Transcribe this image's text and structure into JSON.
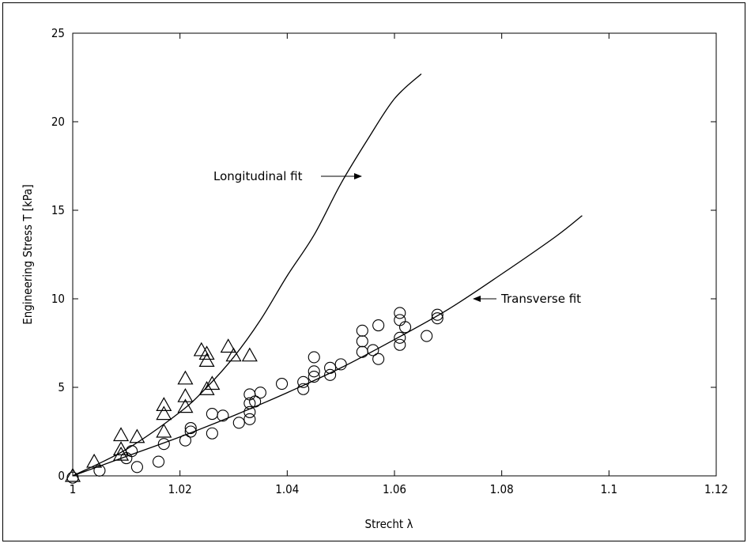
{
  "chart_data": {
    "type": "scatter",
    "title": "",
    "xlabel": "Strecht λ",
    "ylabel": "Engineering Stress T [kPa]",
    "xlim": [
      1,
      1.12
    ],
    "ylim": [
      0,
      25
    ],
    "x_ticks": [
      "1",
      "1.02",
      "1.04",
      "1.06",
      "1.08",
      "1.1",
      "1.12"
    ],
    "y_ticks": [
      "0",
      "5",
      "10",
      "15",
      "20",
      "25"
    ],
    "grid": false,
    "annotations": [
      {
        "text": "Longitudinal fit",
        "points_to": "longitudinal-fit"
      },
      {
        "text": "Transverse fit",
        "points_to": "transverse-fit"
      }
    ],
    "series": [
      {
        "marker": "triangle",
        "points": [
          [
            1.0,
            0.0
          ],
          [
            1.004,
            0.8
          ],
          [
            1.009,
            1.2
          ],
          [
            1.009,
            1.5
          ],
          [
            1.009,
            2.3
          ],
          [
            1.012,
            2.2
          ],
          [
            1.017,
            2.5
          ],
          [
            1.017,
            3.5
          ],
          [
            1.017,
            4.0
          ],
          [
            1.021,
            3.9
          ],
          [
            1.021,
            4.5
          ],
          [
            1.021,
            5.5
          ],
          [
            1.024,
            7.1
          ],
          [
            1.025,
            6.9
          ],
          [
            1.025,
            6.5
          ],
          [
            1.025,
            4.9
          ],
          [
            1.026,
            5.2
          ],
          [
            1.029,
            7.3
          ],
          [
            1.03,
            6.8
          ],
          [
            1.033,
            6.8
          ]
        ]
      },
      {
        "marker": "circle",
        "points": [
          [
            1.0,
            -0.1
          ],
          [
            1.005,
            0.3
          ],
          [
            1.01,
            1.0
          ],
          [
            1.011,
            1.4
          ],
          [
            1.012,
            0.5
          ],
          [
            1.016,
            0.8
          ],
          [
            1.017,
            1.8
          ],
          [
            1.021,
            2.0
          ],
          [
            1.022,
            2.7
          ],
          [
            1.022,
            2.5
          ],
          [
            1.026,
            3.5
          ],
          [
            1.026,
            2.4
          ],
          [
            1.028,
            3.4
          ],
          [
            1.031,
            3.0
          ],
          [
            1.033,
            4.6
          ],
          [
            1.033,
            4.1
          ],
          [
            1.033,
            3.6
          ],
          [
            1.033,
            3.2
          ],
          [
            1.034,
            4.2
          ],
          [
            1.035,
            4.7
          ],
          [
            1.039,
            5.2
          ],
          [
            1.043,
            5.3
          ],
          [
            1.043,
            4.9
          ],
          [
            1.045,
            6.7
          ],
          [
            1.045,
            5.9
          ],
          [
            1.045,
            5.6
          ],
          [
            1.048,
            6.1
          ],
          [
            1.048,
            5.7
          ],
          [
            1.05,
            6.3
          ],
          [
            1.054,
            8.2
          ],
          [
            1.054,
            7.6
          ],
          [
            1.054,
            7.0
          ],
          [
            1.056,
            7.1
          ],
          [
            1.057,
            8.5
          ],
          [
            1.057,
            6.6
          ],
          [
            1.061,
            9.2
          ],
          [
            1.061,
            8.8
          ],
          [
            1.061,
            7.8
          ],
          [
            1.061,
            7.4
          ],
          [
            1.062,
            8.4
          ],
          [
            1.066,
            7.9
          ],
          [
            1.068,
            8.9
          ],
          [
            1.068,
            9.1
          ]
        ]
      },
      {
        "name": "Longitudinal fit",
        "line": true,
        "points": [
          [
            1.0,
            0.0
          ],
          [
            1.01,
            1.5
          ],
          [
            1.02,
            3.6
          ],
          [
            1.025,
            5.0
          ],
          [
            1.03,
            6.7
          ],
          [
            1.035,
            8.8
          ],
          [
            1.04,
            11.3
          ],
          [
            1.045,
            13.6
          ],
          [
            1.05,
            16.5
          ],
          [
            1.055,
            19.0
          ],
          [
            1.06,
            21.3
          ],
          [
            1.065,
            22.7
          ]
        ]
      },
      {
        "name": "Transverse fit",
        "line": true,
        "points": [
          [
            1.0,
            0.0
          ],
          [
            1.01,
            1.1
          ],
          [
            1.02,
            2.2
          ],
          [
            1.03,
            3.4
          ],
          [
            1.04,
            4.7
          ],
          [
            1.05,
            6.1
          ],
          [
            1.06,
            7.7
          ],
          [
            1.07,
            9.4
          ],
          [
            1.08,
            11.4
          ],
          [
            1.09,
            13.5
          ],
          [
            1.095,
            14.7
          ]
        ]
      }
    ]
  }
}
